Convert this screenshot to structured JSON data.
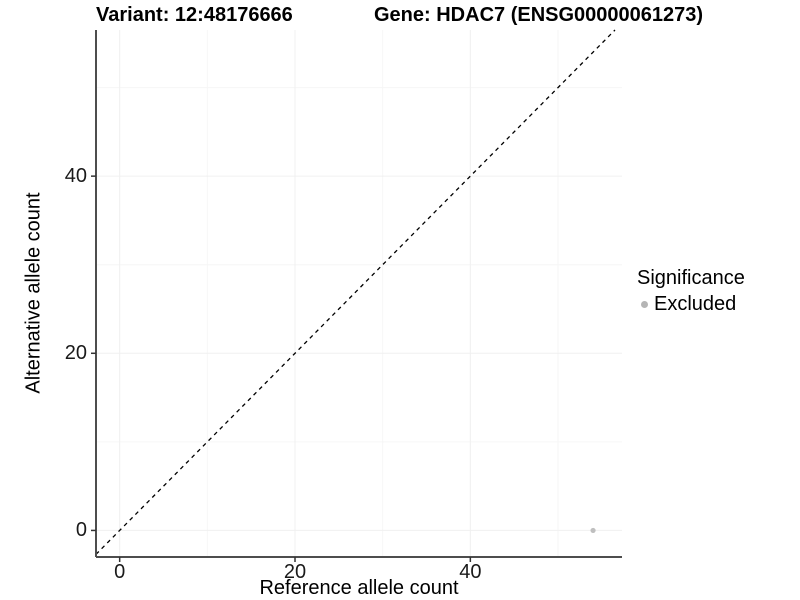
{
  "figure": {
    "titles": {
      "left": "Variant: 12:48176666",
      "right": "Gene: HDAC7 (ENSG00000061273)"
    }
  },
  "chart_data": {
    "type": "scatter",
    "xlabel": "Reference allele count",
    "ylabel": "Alternative allele count",
    "x_ticks": [
      0,
      20,
      40
    ],
    "y_ticks": [
      0,
      20,
      40
    ],
    "x_minor": [
      10,
      30,
      50
    ],
    "y_minor": [
      10,
      30,
      50
    ],
    "xlim": [
      -2.7,
      57.3
    ],
    "ylim": [
      -3.0,
      56.5
    ],
    "grid": true,
    "points": [
      {
        "x": 54,
        "y": 0,
        "series": "Excluded"
      }
    ],
    "reference_line": {
      "kind": "identity",
      "slope": 1,
      "intercept": 0,
      "style": "dashed",
      "color": "#000000"
    },
    "legend": {
      "title": "Significance",
      "position": "right",
      "entries": [
        {
          "label": "Excluded",
          "color": "#b5b5b5"
        }
      ]
    },
    "colors": {
      "point": "#bfbfbf",
      "axis_line": "#4d4d4d",
      "tick_mark": "#333333",
      "grid_major": "#f0f0f0",
      "grid_minor": "#f6f6f6",
      "text": "#000000",
      "background": "#ffffff"
    }
  }
}
